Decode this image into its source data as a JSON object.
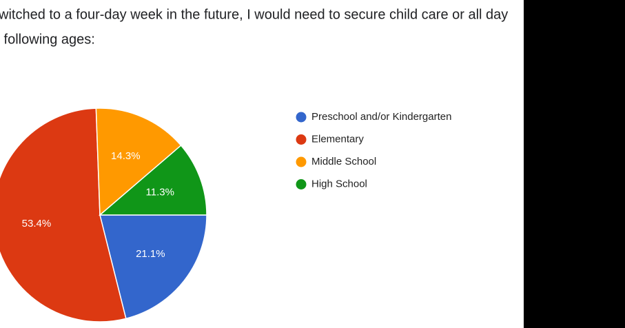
{
  "chart_data": {
    "type": "pie",
    "title_lines": [
      "witched to a four-day week in the future, I would need to secure child care or all day",
      " following ages:"
    ],
    "categories": [
      "Preschool and/or Kindergarten",
      "Elementary",
      "Middle School",
      "High School"
    ],
    "values": [
      21.1,
      53.4,
      14.3,
      11.3
    ],
    "value_labels": [
      "21.1%",
      "53.4%",
      "14.3%",
      "11.3%"
    ],
    "colors": [
      "#3366cc",
      "#dc3912",
      "#ff9900",
      "#109618"
    ],
    "legend": "right"
  }
}
